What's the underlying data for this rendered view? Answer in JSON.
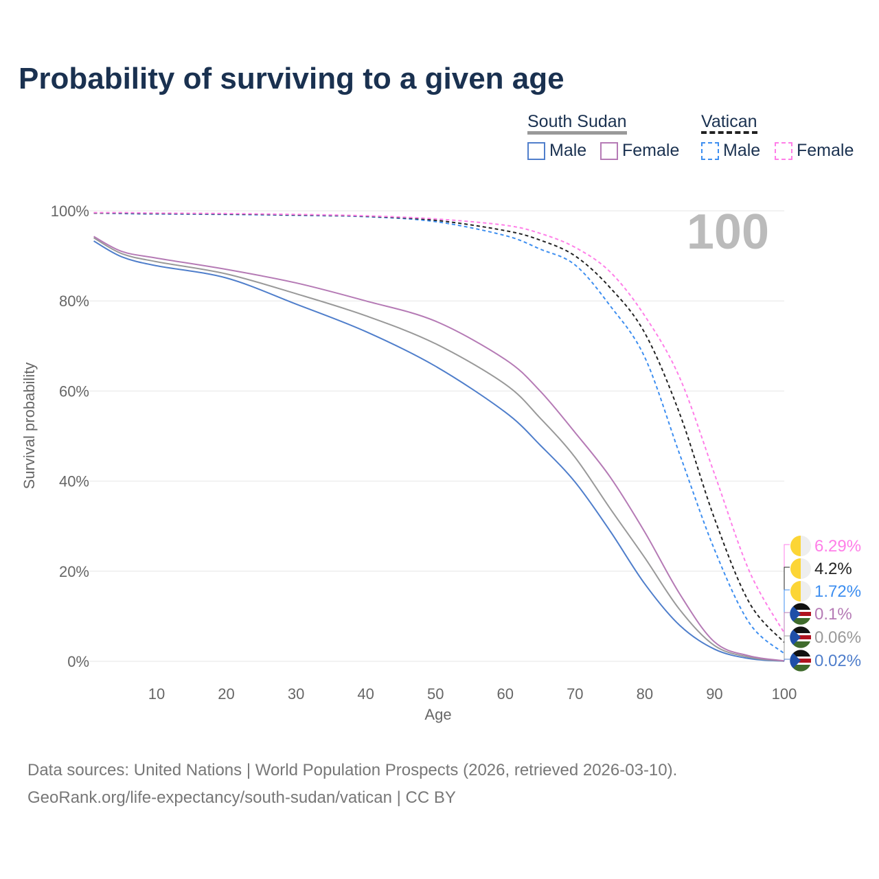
{
  "title": "Probability of surviving to a given age",
  "legend": {
    "group1": "South Sudan",
    "group2": "Vatican",
    "male": "Male",
    "female": "Female"
  },
  "footer": {
    "line1": "Data sources: United Nations | World Population Prospects (2026, retrieved 2026-03-10).",
    "line2": "GeoRank.org/life-expectancy/south-sudan/vatican | CC BY"
  },
  "chart_data": {
    "type": "line",
    "title": "Probability of surviving to a given age",
    "xlabel": "Age",
    "ylabel": "Survival probability",
    "xlim": [
      1,
      100
    ],
    "ylim": [
      0,
      100
    ],
    "xticks": [
      "10",
      "20",
      "30",
      "40",
      "50",
      "60",
      "70",
      "80",
      "90",
      "100"
    ],
    "yticks": [
      "0%",
      "20%",
      "40%",
      "60%",
      "80%",
      "100%"
    ],
    "age_indicator": "100",
    "x": [
      1,
      5,
      10,
      20,
      30,
      40,
      50,
      60,
      65,
      70,
      75,
      80,
      85,
      90,
      95,
      100
    ],
    "series": [
      {
        "name": "Vatican Female",
        "color": "#ff7ee8",
        "dashed": true,
        "end_label": "6.29%",
        "values": [
          99.6,
          99.6,
          99.5,
          99.4,
          99.2,
          98.9,
          98.2,
          96.8,
          95,
          91.9,
          86.5,
          76.7,
          63,
          41.6,
          20,
          6.29
        ]
      },
      {
        "name": "Vatican",
        "color": "#222222",
        "dashed": true,
        "end_label": "4.2%",
        "values": [
          99.5,
          99.5,
          99.4,
          99.3,
          99.1,
          98.8,
          97.9,
          95.6,
          93.5,
          90,
          83,
          72.9,
          55,
          31.7,
          13,
          4.2
        ]
      },
      {
        "name": "Vatican Male",
        "color": "#3d8ef0",
        "dashed": true,
        "end_label": "1.72%",
        "values": [
          99.5,
          99.4,
          99.3,
          99.2,
          99,
          98.7,
          97.6,
          94.5,
          91.5,
          88,
          79,
          67.5,
          46,
          24.8,
          8.5,
          1.72
        ]
      },
      {
        "name": "South Sudan Female",
        "color": "#b57ab5",
        "dashed": false,
        "end_label": "0.1%",
        "values": [
          94.3,
          91,
          89.5,
          87,
          84,
          80,
          75.5,
          67,
          60,
          50.8,
          41,
          28.7,
          15,
          4.3,
          1.2,
          0.1
        ]
      },
      {
        "name": "South Sudan",
        "color": "#999999",
        "dashed": false,
        "end_label": "0.06%",
        "values": [
          94,
          90.5,
          88.7,
          86,
          81.6,
          76.7,
          70.5,
          61.5,
          54,
          45.3,
          34,
          23,
          11.5,
          3.5,
          0.9,
          0.06
        ]
      },
      {
        "name": "South Sudan Male",
        "color": "#4f7ecb",
        "dashed": false,
        "end_label": "0.02%",
        "values": [
          93.3,
          89.8,
          87.8,
          85.1,
          79.3,
          73.2,
          65.5,
          55.3,
          48,
          39.8,
          29,
          17.2,
          8,
          2.7,
          0.6,
          0.02
        ]
      }
    ]
  }
}
